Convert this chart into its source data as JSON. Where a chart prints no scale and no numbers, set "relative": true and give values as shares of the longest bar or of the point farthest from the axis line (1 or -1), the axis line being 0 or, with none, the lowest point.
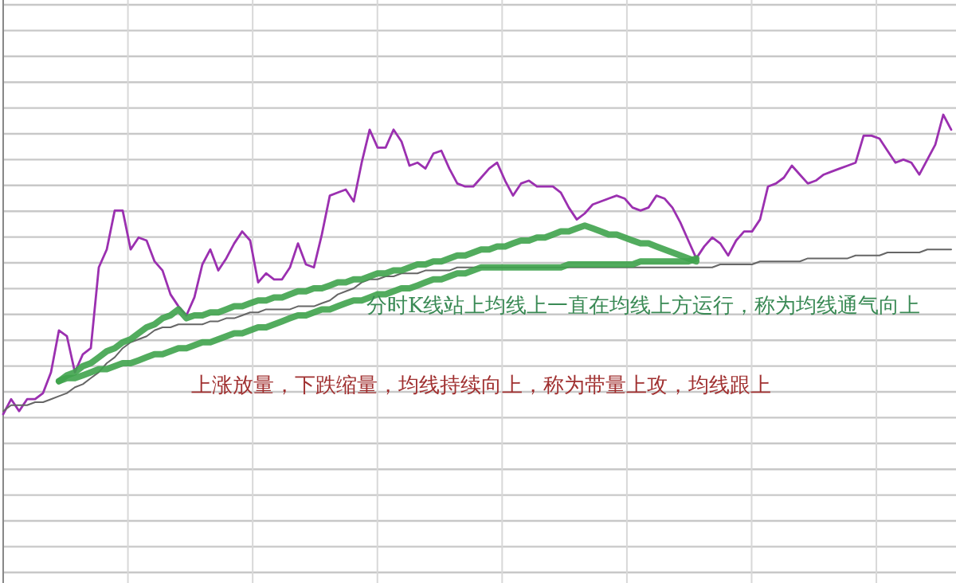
{
  "chart_data": {
    "type": "line",
    "relative": true,
    "grid": true,
    "categories": [
      null,
      null,
      null,
      null,
      null,
      null,
      null,
      null,
      null,
      null,
      null,
      null,
      null,
      null,
      null,
      null,
      null,
      null,
      null,
      null,
      null,
      null,
      null,
      null,
      null,
      null,
      null,
      null,
      null,
      null,
      null,
      null,
      null,
      null,
      null,
      null,
      null,
      null,
      null,
      null,
      null,
      null,
      null,
      null,
      null,
      null,
      null,
      null,
      null,
      null,
      null,
      null,
      null,
      null,
      null,
      null,
      null,
      null,
      null,
      null,
      null,
      null,
      null,
      null,
      null,
      null,
      null,
      null,
      null,
      null,
      null,
      null,
      null,
      null,
      null,
      null,
      null,
      null,
      null,
      null,
      null,
      null,
      null,
      null,
      null,
      null,
      null,
      null,
      null,
      null,
      null,
      null,
      null,
      null,
      null,
      null,
      null,
      null,
      null,
      null,
      null,
      null,
      null,
      null,
      null,
      null,
      null,
      null,
      null,
      null,
      null,
      null,
      null,
      null,
      null,
      null,
      null,
      null,
      null,
      null
    ],
    "annotations": [
      "分时K线站上均线上一直在均线上方运行，称为均线通气向上",
      "上涨放量，下跌缩量，均线持续向上，称为带量上攻，均线跟上"
    ],
    "series": [
      {
        "color": "#9b30b0",
        "values": [
          0.0,
          0.05,
          0.01,
          0.05,
          0.05,
          0.07,
          0.14,
          0.28,
          0.26,
          0.14,
          0.2,
          0.22,
          0.49,
          0.55,
          0.68,
          0.68,
          0.55,
          0.59,
          0.58,
          0.51,
          0.48,
          0.4,
          0.36,
          0.33,
          0.39,
          0.5,
          0.55,
          0.48,
          0.52,
          0.57,
          0.61,
          0.58,
          0.44,
          0.47,
          0.45,
          0.45,
          0.49,
          0.57,
          0.5,
          0.49,
          0.6,
          0.73,
          0.74,
          0.75,
          0.71,
          0.84,
          0.95,
          0.89,
          0.89,
          0.95,
          0.91,
          0.83,
          0.84,
          0.82,
          0.87,
          0.88,
          0.82,
          0.77,
          0.76,
          0.76,
          0.79,
          0.82,
          0.84,
          0.78,
          0.73,
          0.77,
          0.78,
          0.76,
          0.76,
          0.76,
          0.74,
          0.69,
          0.65,
          0.67,
          0.7,
          0.71,
          0.72,
          0.73,
          0.72,
          0.69,
          0.68,
          0.69,
          0.73,
          0.72,
          0.69,
          0.64,
          0.58,
          0.52,
          0.56,
          0.59,
          0.57,
          0.53,
          0.58,
          0.61,
          0.61,
          0.65,
          0.76,
          0.77,
          0.79,
          0.83,
          0.8,
          0.77,
          0.78,
          0.8,
          0.81,
          0.82,
          0.83,
          0.84,
          0.93,
          0.93,
          0.92,
          0.88,
          0.84,
          0.85,
          0.84,
          0.8,
          0.85,
          0.9,
          1.0,
          0.95
        ]
      },
      {
        "color": "#666666",
        "values": [
          0.01,
          0.03,
          0.03,
          0.03,
          0.04,
          0.04,
          0.05,
          0.06,
          0.07,
          0.09,
          0.1,
          0.12,
          0.14,
          0.17,
          0.19,
          0.22,
          0.24,
          0.25,
          0.26,
          0.28,
          0.29,
          0.29,
          0.3,
          0.3,
          0.3,
          0.3,
          0.31,
          0.31,
          0.32,
          0.32,
          0.33,
          0.34,
          0.34,
          0.35,
          0.35,
          0.35,
          0.35,
          0.36,
          0.36,
          0.36,
          0.37,
          0.38,
          0.4,
          0.41,
          0.42,
          0.44,
          0.45,
          0.45,
          0.46,
          0.46,
          0.47,
          0.47,
          0.47,
          0.48,
          0.48,
          0.48,
          0.48,
          0.49,
          0.49,
          0.49,
          0.49,
          0.49,
          0.49,
          0.49,
          0.49,
          0.49,
          0.49,
          0.49,
          0.49,
          0.49,
          0.49,
          0.49,
          0.49,
          0.49,
          0.49,
          0.49,
          0.49,
          0.49,
          0.49,
          0.49,
          0.49,
          0.49,
          0.49,
          0.49,
          0.49,
          0.49,
          0.49,
          0.49,
          0.49,
          0.49,
          0.5,
          0.5,
          0.5,
          0.5,
          0.5,
          0.51,
          0.51,
          0.51,
          0.51,
          0.51,
          0.51,
          0.52,
          0.52,
          0.52,
          0.52,
          0.52,
          0.52,
          0.53,
          0.53,
          0.53,
          0.53,
          0.54,
          0.54,
          0.54,
          0.54,
          0.54,
          0.55,
          0.55,
          0.55,
          0.55
        ]
      },
      {
        "color": "#3fa34d",
        "values": [
          null,
          null,
          null,
          null,
          null,
          null,
          null,
          0.11,
          0.13,
          0.14,
          0.16,
          0.17,
          0.19,
          0.21,
          0.22,
          0.24,
          0.25,
          0.27,
          0.29,
          0.3,
          0.32,
          0.33,
          0.35,
          0.32,
          0.33,
          0.33,
          0.34,
          0.34,
          0.35,
          0.36,
          0.36,
          0.37,
          0.38,
          0.38,
          0.39,
          0.39,
          0.4,
          0.41,
          0.41,
          0.42,
          0.42,
          0.43,
          0.44,
          0.44,
          0.45,
          0.45,
          0.46,
          0.47,
          0.47,
          0.48,
          0.48,
          0.49,
          0.5,
          0.5,
          0.51,
          0.51,
          0.52,
          0.53,
          0.53,
          0.54,
          0.55,
          0.55,
          0.56,
          0.56,
          0.57,
          0.58,
          0.58,
          0.59,
          0.59,
          0.6,
          0.61,
          0.61,
          0.62,
          0.63,
          0.62,
          0.61,
          0.6,
          0.6,
          0.59,
          0.58,
          0.57,
          0.57,
          0.56,
          0.55,
          0.54,
          0.53,
          0.52,
          0.51,
          null,
          null,
          null,
          null,
          null,
          null,
          null,
          null,
          null,
          null,
          null,
          null,
          null,
          null,
          null,
          null,
          null,
          null,
          null,
          null,
          null,
          null,
          null,
          null,
          null,
          null,
          null,
          null,
          null,
          null,
          null,
          null
        ]
      },
      {
        "color": "#3fa34d",
        "values": [
          null,
          null,
          null,
          null,
          null,
          null,
          null,
          0.11,
          0.12,
          0.12,
          0.13,
          0.14,
          0.15,
          0.15,
          0.16,
          0.17,
          0.17,
          0.18,
          0.19,
          0.2,
          0.2,
          0.21,
          0.22,
          0.22,
          0.23,
          0.24,
          0.24,
          0.25,
          0.26,
          0.27,
          0.27,
          0.28,
          0.29,
          0.29,
          0.3,
          0.31,
          0.32,
          0.33,
          0.33,
          0.34,
          0.35,
          0.35,
          0.36,
          0.37,
          0.38,
          0.38,
          0.39,
          0.4,
          0.4,
          0.41,
          0.42,
          0.42,
          0.43,
          0.44,
          0.45,
          0.45,
          0.46,
          0.47,
          0.47,
          0.48,
          0.49,
          0.49,
          0.49,
          0.49,
          0.49,
          0.49,
          0.49,
          0.49,
          0.49,
          0.49,
          0.49,
          0.5,
          0.5,
          0.5,
          0.5,
          0.5,
          0.5,
          0.5,
          0.5,
          0.5,
          0.51,
          0.51,
          0.51,
          0.51,
          0.51,
          0.51,
          0.51,
          0.52,
          null,
          null,
          null,
          null,
          null,
          null,
          null,
          null,
          null,
          null,
          null,
          null,
          null,
          null,
          null,
          null,
          null,
          null,
          null,
          null,
          null,
          null,
          null,
          null,
          null,
          null,
          null,
          null,
          null,
          null,
          null,
          null
        ]
      }
    ]
  }
}
